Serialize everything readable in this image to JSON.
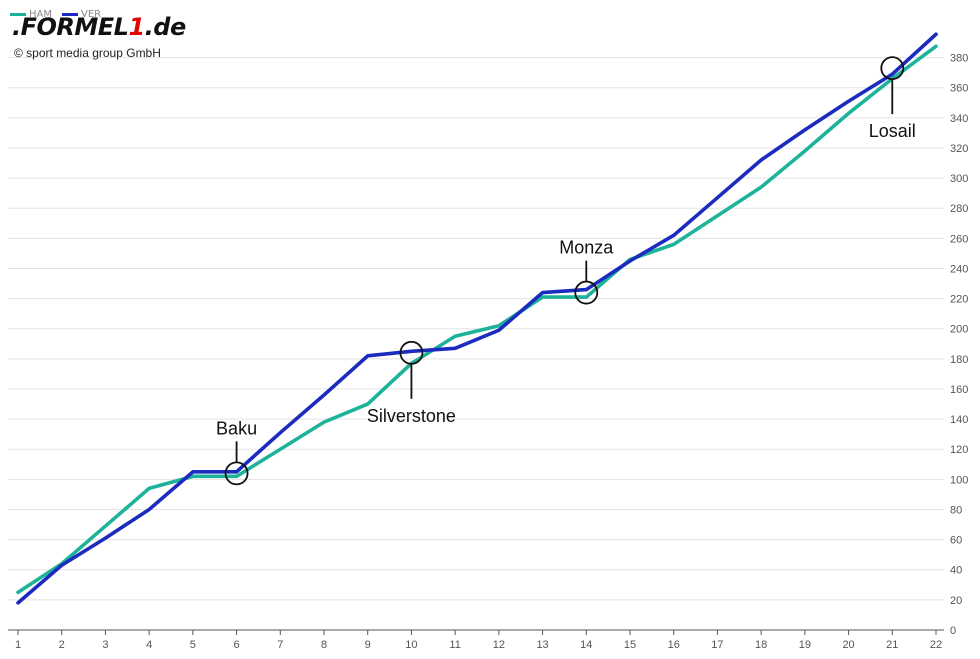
{
  "brand": {
    "logo_prefix": ".FORMEL",
    "logo_one": "1",
    "logo_suffix": ".de",
    "copyright": "© sport media group GmbH"
  },
  "chart_data": {
    "type": "line",
    "title": "",
    "xlabel": "",
    "ylabel": "",
    "x": [
      1,
      2,
      3,
      4,
      5,
      6,
      7,
      8,
      9,
      10,
      11,
      12,
      13,
      14,
      15,
      16,
      17,
      18,
      19,
      20,
      21,
      22
    ],
    "xlim": [
      1,
      22
    ],
    "ylim": [
      0,
      395
    ],
    "yticks": [
      0,
      20,
      40,
      60,
      80,
      100,
      120,
      140,
      160,
      180,
      200,
      220,
      240,
      260,
      280,
      300,
      320,
      340,
      360,
      380
    ],
    "grid": true,
    "legend_position": "top-left",
    "series": [
      {
        "name": "HAM",
        "color": "#1db39a",
        "values": [
          25,
          44,
          69,
          94,
          102,
          102,
          120,
          138,
          150,
          177,
          195,
          202,
          221,
          221,
          246,
          256,
          275,
          294,
          318,
          343,
          366,
          387.5
        ]
      },
      {
        "name": "VER",
        "color": "#1b2bbf",
        "values": [
          18,
          43,
          61,
          80,
          105,
          105,
          131,
          156,
          182,
          185,
          187,
          199,
          224,
          226,
          245,
          262,
          287,
          312,
          332,
          351,
          369,
          395.5
        ]
      }
    ],
    "annotations": [
      {
        "label": "Baku",
        "x": 6,
        "y": 104,
        "label_side": "above"
      },
      {
        "label": "Silverstone",
        "x": 10,
        "y": 184,
        "label_side": "below"
      },
      {
        "label": "Monza",
        "x": 14,
        "y": 224,
        "label_side": "above"
      },
      {
        "label": "Losail",
        "x": 21,
        "y": 373,
        "label_side": "below"
      }
    ]
  }
}
